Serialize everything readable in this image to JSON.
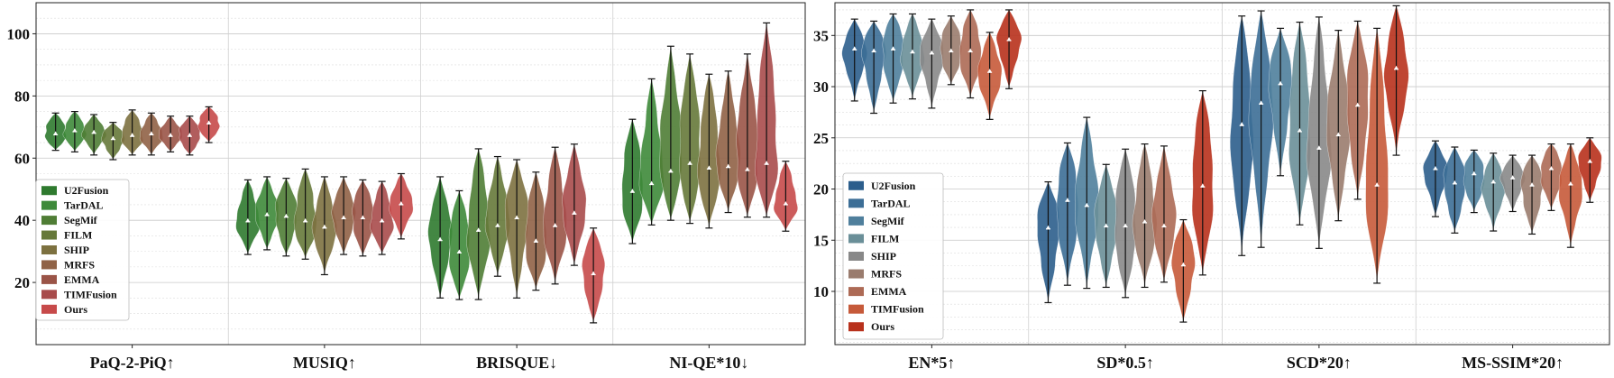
{
  "charts": [
    {
      "title": "",
      "ylim": [
        0,
        110
      ],
      "yticks": [
        20,
        40,
        60,
        80,
        100
      ],
      "categories": [
        "PaQ-2-PiQ↑",
        "MUSIQ↑",
        "BRISQUE↓",
        "NI-QE*10↓"
      ],
      "legend_position": "left",
      "methods": [
        {
          "name": "U2Fusion",
          "color": "#2f7a2f"
        },
        {
          "name": "TarDAL",
          "color": "#3e8a3a"
        },
        {
          "name": "SegMif",
          "color": "#4f7d35"
        },
        {
          "name": "FILM",
          "color": "#66793a"
        },
        {
          "name": "SHIP",
          "color": "#7d7140"
        },
        {
          "name": "MRFS",
          "color": "#906246"
        },
        {
          "name": "EMMA",
          "color": "#9a5447"
        },
        {
          "name": "TIMFusion",
          "color": "#a84b4b"
        },
        {
          "name": "Ours",
          "color": "#c74a4a"
        }
      ],
      "groups": [
        {
          "label": "PaQ-2-PiQ↑",
          "stats": [
            {
              "min": 62.5,
              "max": 74.5,
              "median": 67.5
            },
            {
              "min": 62,
              "max": 75,
              "median": 68.5
            },
            {
              "min": 61,
              "max": 74,
              "median": 68
            },
            {
              "min": 59.5,
              "max": 71.5,
              "median": 66
            },
            {
              "min": 61,
              "max": 75.5,
              "median": 67
            },
            {
              "min": 61,
              "max": 74.5,
              "median": 67.5
            },
            {
              "min": 62,
              "max": 73.5,
              "median": 67
            },
            {
              "min": 61,
              "max": 73.5,
              "median": 67
            },
            {
              "min": 65,
              "max": 76.5,
              "median": 71
            }
          ]
        },
        {
          "label": "MUSIQ↑",
          "stats": [
            {
              "min": 29,
              "max": 53,
              "median": 39.5
            },
            {
              "min": 30.5,
              "max": 54,
              "median": 41.5
            },
            {
              "min": 28.5,
              "max": 53.5,
              "median": 41
            },
            {
              "min": 27.5,
              "max": 56.5,
              "median": 39.5
            },
            {
              "min": 22.5,
              "max": 54,
              "median": 37.5
            },
            {
              "min": 29,
              "max": 54,
              "median": 40.5
            },
            {
              "min": 28.5,
              "max": 53,
              "median": 40.5
            },
            {
              "min": 29,
              "max": 52.5,
              "median": 39.5
            },
            {
              "min": 34,
              "max": 55,
              "median": 45
            }
          ]
        },
        {
          "label": "BRISQUE↓",
          "stats": [
            {
              "min": 15,
              "max": 54,
              "median": 33.5
            },
            {
              "min": 14.5,
              "max": 49.5,
              "median": 29.5
            },
            {
              "min": 14.5,
              "max": 63,
              "median": 36.5
            },
            {
              "min": 22,
              "max": 60.5,
              "median": 38
            },
            {
              "min": 15,
              "max": 59.5,
              "median": 40.5
            },
            {
              "min": 17.5,
              "max": 55.5,
              "median": 33
            },
            {
              "min": 19.5,
              "max": 63.5,
              "median": 38
            },
            {
              "min": 25.5,
              "max": 64.5,
              "median": 42
            },
            {
              "min": 7,
              "max": 37.5,
              "median": 22.5
            }
          ]
        },
        {
          "label": "NI-QE*10↓",
          "stats": [
            {
              "min": 32.5,
              "max": 72.5,
              "median": 49
            },
            {
              "min": 38.5,
              "max": 85.5,
              "median": 51.5
            },
            {
              "min": 40,
              "max": 96,
              "median": 55.5
            },
            {
              "min": 39,
              "max": 93.5,
              "median": 58
            },
            {
              "min": 37.5,
              "max": 87,
              "median": 56.5
            },
            {
              "min": 42.5,
              "max": 88,
              "median": 57
            },
            {
              "min": 41,
              "max": 93.5,
              "median": 56
            },
            {
              "min": 41,
              "max": 103.5,
              "median": 58
            },
            {
              "min": 36.5,
              "max": 59,
              "median": 45
            }
          ]
        }
      ]
    },
    {
      "title": "",
      "ylim": [
        4.8,
        38.2
      ],
      "yticks": [
        10,
        15,
        20,
        25,
        30,
        35
      ],
      "categories": [
        "EN*5↑",
        "SD*0.5↑",
        "SCD*20↑",
        "MS-SSIM*20↑"
      ],
      "legend_position": "left",
      "methods": [
        {
          "name": "U2Fusion",
          "color": "#2c5e8c"
        },
        {
          "name": "TarDAL",
          "color": "#3c6e96"
        },
        {
          "name": "SegMif",
          "color": "#4f7f9c"
        },
        {
          "name": "FILM",
          "color": "#6a8f98"
        },
        {
          "name": "SHIP",
          "color": "#888888"
        },
        {
          "name": "MRFS",
          "color": "#9a7c6e"
        },
        {
          "name": "EMMA",
          "color": "#ad6a55"
        },
        {
          "name": "TIMFusion",
          "color": "#c65a3a"
        },
        {
          "name": "Ours",
          "color": "#b8311c"
        }
      ],
      "groups": [
        {
          "label": "EN*5↑",
          "stats": [
            {
              "min": 28.6,
              "max": 36.6,
              "median": 33.6
            },
            {
              "min": 27.4,
              "max": 36.4,
              "median": 33.4
            },
            {
              "min": 28.4,
              "max": 37.1,
              "median": 33.6
            },
            {
              "min": 28.8,
              "max": 37.1,
              "median": 33.3
            },
            {
              "min": 27.9,
              "max": 36.6,
              "median": 33.2
            },
            {
              "min": 30.2,
              "max": 36.9,
              "median": 33.4
            },
            {
              "min": 28.9,
              "max": 37.5,
              "median": 33.4
            },
            {
              "min": 26.8,
              "max": 35.3,
              "median": 31.4
            },
            {
              "min": 29.8,
              "max": 37.5,
              "median": 34.5
            }
          ]
        },
        {
          "label": "SD*0.5↑",
          "stats": [
            {
              "min": 8.9,
              "max": 20.7,
              "median": 16.1
            },
            {
              "min": 10.6,
              "max": 24.5,
              "median": 18.8
            },
            {
              "min": 10.3,
              "max": 27.0,
              "median": 18.3
            },
            {
              "min": 10.4,
              "max": 22.4,
              "median": 16.3
            },
            {
              "min": 9.4,
              "max": 23.9,
              "median": 16.3
            },
            {
              "min": 10.4,
              "max": 24.4,
              "median": 16.7
            },
            {
              "min": 10.9,
              "max": 24.2,
              "median": 16.3
            },
            {
              "min": 7.0,
              "max": 17.0,
              "median": 12.5
            },
            {
              "min": 11.6,
              "max": 29.6,
              "median": 20.2
            }
          ]
        },
        {
          "label": "SCD*20↑",
          "stats": [
            {
              "min": 13.5,
              "max": 36.9,
              "median": 26.2
            },
            {
              "min": 14.3,
              "max": 37.4,
              "median": 28.3
            },
            {
              "min": 21.3,
              "max": 35.7,
              "median": 30.2
            },
            {
              "min": 16.5,
              "max": 36.3,
              "median": 25.6
            },
            {
              "min": 14.2,
              "max": 36.8,
              "median": 23.9
            },
            {
              "min": 16.9,
              "max": 35.5,
              "median": 25.2
            },
            {
              "min": 19.0,
              "max": 36.4,
              "median": 28.1
            },
            {
              "min": 10.8,
              "max": 35.7,
              "median": 20.3
            },
            {
              "min": 23.3,
              "max": 37.9,
              "median": 31.7
            }
          ]
        },
        {
          "label": "MS-SSIM*20↑",
          "stats": [
            {
              "min": 17.3,
              "max": 24.7,
              "median": 21.9
            },
            {
              "min": 15.7,
              "max": 24.1,
              "median": 20.5
            },
            {
              "min": 17.7,
              "max": 23.8,
              "median": 21.4
            },
            {
              "min": 15.9,
              "max": 23.5,
              "median": 20.6
            },
            {
              "min": 17.8,
              "max": 23.3,
              "median": 21.0
            },
            {
              "min": 15.6,
              "max": 23.3,
              "median": 20.3
            },
            {
              "min": 17.9,
              "max": 24.4,
              "median": 21.9
            },
            {
              "min": 14.3,
              "max": 24.4,
              "median": 20.4
            },
            {
              "min": 18.7,
              "max": 25.0,
              "median": 22.6
            }
          ]
        }
      ]
    }
  ]
}
